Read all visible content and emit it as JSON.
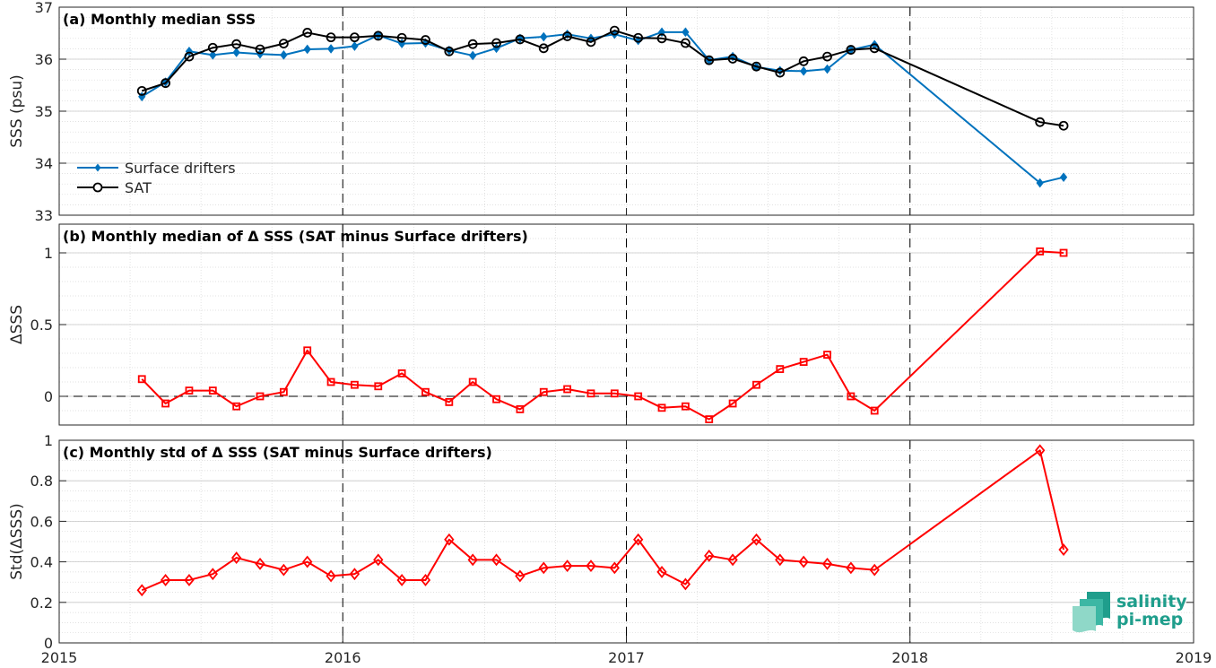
{
  "xaxis": {
    "ticks": [
      2015,
      2016,
      2017,
      2018,
      2019
    ],
    "tick_labels": [
      "2015",
      "2016",
      "2017",
      "2018",
      "2019"
    ],
    "range": [
      2015,
      2019
    ],
    "year_markers": [
      2016,
      2017,
      2018
    ]
  },
  "logo": {
    "line1": "salinity",
    "line2": "pi-mep"
  },
  "colors": {
    "surface_drifters": "#0072BD",
    "sat": "#000000",
    "delta": "#FF0000",
    "grid": "#c8c8c8",
    "axis": "#262626"
  },
  "chart_data": [
    {
      "type": "line",
      "title": "(a) Monthly median SSS",
      "ylabel": "SSS (psu)",
      "ylim": [
        33,
        37
      ],
      "yticks": [
        33,
        34,
        35,
        36,
        37
      ],
      "ytick_labels": [
        "33",
        "34",
        "35",
        "36",
        "37"
      ],
      "grid": true,
      "legend_position": "bottom-left",
      "x": [
        "2015-04",
        "2015-05",
        "2015-06",
        "2015-07",
        "2015-08",
        "2015-09",
        "2015-10",
        "2015-11",
        "2015-12",
        "2016-01",
        "2016-02",
        "2016-03",
        "2016-04",
        "2016-05",
        "2016-06",
        "2016-07",
        "2016-08",
        "2016-09",
        "2016-10",
        "2016-11",
        "2016-12",
        "2017-01",
        "2017-02",
        "2017-03",
        "2017-04",
        "2017-05",
        "2017-06",
        "2017-07",
        "2017-08",
        "2017-09",
        "2017-10",
        "2017-11",
        "2018-06",
        "2018-07"
      ],
      "series": [
        {
          "name": "Surface drifters",
          "marker": "diamond-filled",
          "color": "#0072BD",
          "values": [
            35.28,
            35.56,
            36.15,
            36.08,
            36.13,
            36.1,
            36.08,
            36.19,
            36.2,
            36.25,
            36.46,
            36.3,
            36.31,
            36.17,
            36.07,
            36.21,
            36.4,
            36.43,
            36.48,
            36.4,
            36.48,
            36.36,
            36.52,
            36.52,
            35.98,
            36.05,
            35.85,
            35.78,
            35.77,
            35.81,
            36.18,
            36.28,
            33.62,
            33.73
          ]
        },
        {
          "name": "SAT",
          "marker": "circle-open",
          "color": "#000000",
          "values": [
            35.39,
            35.54,
            36.05,
            36.22,
            36.29,
            36.19,
            36.3,
            36.51,
            36.42,
            36.42,
            36.45,
            36.41,
            36.37,
            36.15,
            36.29,
            36.31,
            36.38,
            36.21,
            36.44,
            36.33,
            36.55,
            36.41,
            36.4,
            36.31,
            35.98,
            36.01,
            35.86,
            35.74,
            35.96,
            36.05,
            36.18,
            36.21,
            34.79,
            34.72
          ]
        }
      ]
    },
    {
      "type": "line",
      "title": "(b) Monthly median of Δ SSS (SAT minus Surface drifters)",
      "ylabel": "ΔSSS",
      "ylim": [
        -0.2,
        1.2
      ],
      "yticks": [
        0,
        0.5,
        1
      ],
      "ytick_labels": [
        "0",
        "0.5",
        "1"
      ],
      "grid": true,
      "reference_line": 0,
      "x": [
        "2015-04",
        "2015-05",
        "2015-06",
        "2015-07",
        "2015-08",
        "2015-09",
        "2015-10",
        "2015-11",
        "2015-12",
        "2016-01",
        "2016-02",
        "2016-03",
        "2016-04",
        "2016-05",
        "2016-06",
        "2016-07",
        "2016-08",
        "2016-09",
        "2016-10",
        "2016-11",
        "2016-12",
        "2017-01",
        "2017-02",
        "2017-03",
        "2017-04",
        "2017-05",
        "2017-06",
        "2017-07",
        "2017-08",
        "2017-09",
        "2017-10",
        "2017-11",
        "2018-06",
        "2018-07"
      ],
      "series": [
        {
          "marker": "square-open",
          "color": "#FF0000",
          "values": [
            0.12,
            -0.05,
            0.04,
            0.04,
            -0.07,
            0.0,
            0.03,
            0.32,
            0.1,
            0.08,
            0.07,
            0.16,
            0.03,
            -0.04,
            0.1,
            -0.02,
            -0.09,
            0.03,
            0.05,
            0.02,
            0.02,
            0.0,
            -0.08,
            -0.07,
            -0.16,
            -0.05,
            0.08,
            0.19,
            0.24,
            0.29,
            0.0,
            -0.1,
            1.01,
            1.0
          ]
        }
      ]
    },
    {
      "type": "line",
      "title": "(c) Monthly std of Δ SSS (SAT minus Surface drifters)",
      "ylabel": "Std(ΔSSS)",
      "ylim": [
        0,
        1
      ],
      "yticks": [
        0,
        0.2,
        0.4,
        0.6,
        0.8,
        1
      ],
      "ytick_labels": [
        "0",
        "0.2",
        "0.4",
        "0.6",
        "0.8",
        "1"
      ],
      "grid": true,
      "x": [
        "2015-04",
        "2015-05",
        "2015-06",
        "2015-07",
        "2015-08",
        "2015-09",
        "2015-10",
        "2015-11",
        "2015-12",
        "2016-01",
        "2016-02",
        "2016-03",
        "2016-04",
        "2016-05",
        "2016-06",
        "2016-07",
        "2016-08",
        "2016-09",
        "2016-10",
        "2016-11",
        "2016-12",
        "2017-01",
        "2017-02",
        "2017-03",
        "2017-04",
        "2017-05",
        "2017-06",
        "2017-07",
        "2017-08",
        "2017-09",
        "2017-10",
        "2017-11",
        "2018-06",
        "2018-07"
      ],
      "series": [
        {
          "marker": "diamond-open",
          "color": "#FF0000",
          "values": [
            0.26,
            0.31,
            0.31,
            0.34,
            0.42,
            0.39,
            0.36,
            0.4,
            0.33,
            0.34,
            0.41,
            0.31,
            0.31,
            0.51,
            0.41,
            0.41,
            0.33,
            0.37,
            0.38,
            0.38,
            0.37,
            0.51,
            0.35,
            0.29,
            0.43,
            0.41,
            0.51,
            0.41,
            0.4,
            0.39,
            0.37,
            0.36,
            0.95,
            0.46
          ]
        }
      ]
    }
  ]
}
